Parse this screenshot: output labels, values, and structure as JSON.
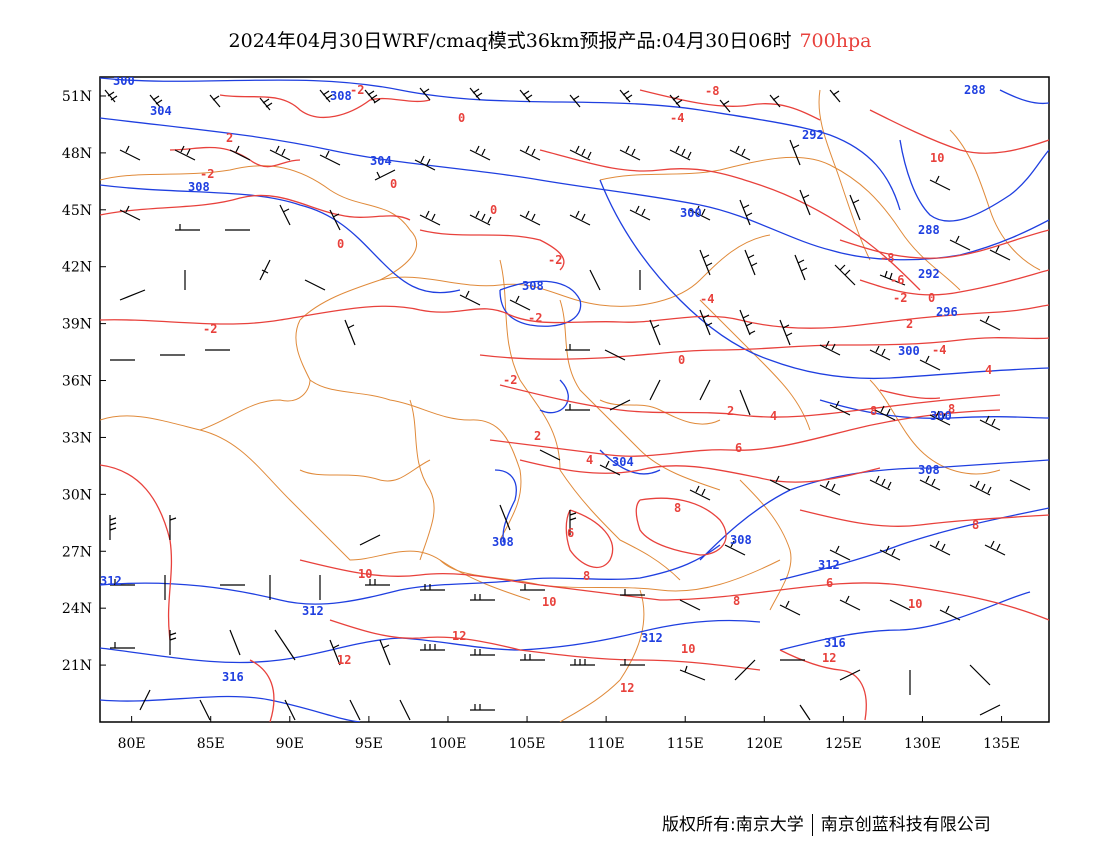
{
  "header": {
    "title": "2024年04月30日WRF/cmaq模式36km预报产品:04月30日06时",
    "level": "700hpa"
  },
  "map": {
    "x_tick_labels": [
      "80E",
      "85E",
      "90E",
      "95E",
      "100E",
      "105E",
      "110E",
      "115E",
      "120E",
      "125E",
      "130E",
      "135E"
    ],
    "y_tick_labels": [
      "51N",
      "48N",
      "45N",
      "42N",
      "39N",
      "36N",
      "33N",
      "30N",
      "27N",
      "24N",
      "21N"
    ],
    "lon_range": [
      78,
      138
    ],
    "lat_range": [
      18,
      52
    ],
    "temperature_labels": [
      "-2",
      "-8",
      "-4",
      "0",
      "2",
      "-2",
      "0",
      "0",
      "0",
      "10",
      "-2",
      "-4",
      "-2",
      "-6",
      "-8",
      "-2",
      "0",
      "-2",
      "2",
      "-4",
      "0",
      "2",
      "4",
      "8",
      "4",
      "2",
      "8",
      "-2",
      "4",
      "6",
      "8",
      "6",
      "8",
      "8",
      "8",
      "6",
      "10",
      "10",
      "10",
      "12",
      "12",
      "10",
      "12",
      "12"
    ],
    "height_labels": [
      "300",
      "304",
      "308",
      "304",
      "308",
      "300",
      "292",
      "288",
      "288",
      "292",
      "296",
      "300",
      "308",
      "304",
      "300",
      "308",
      "312",
      "308",
      "308",
      "312",
      "312",
      "316",
      "316",
      "312"
    ],
    "colors": {
      "temperature": "#e8413c",
      "height": "#1f3fe0",
      "border": "#e08a3a",
      "wind": "#000000"
    }
  },
  "footer": {
    "left": "版权所有:南京大学",
    "right": "南京创蓝科技有限公司"
  }
}
